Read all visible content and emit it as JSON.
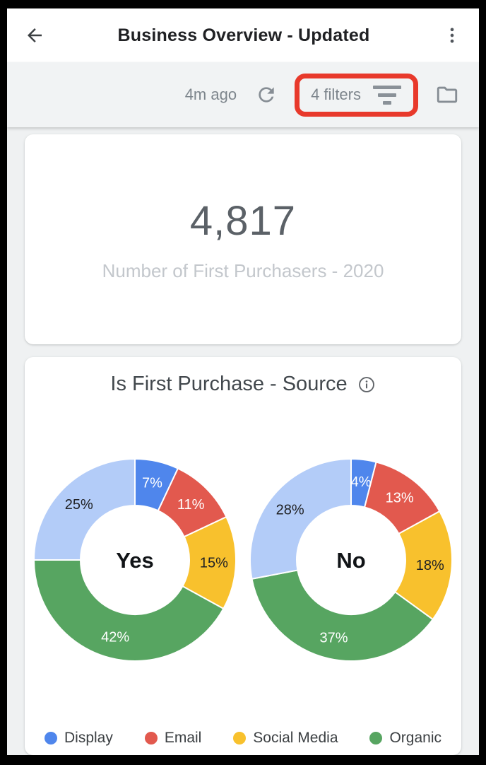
{
  "header": {
    "title": "Business Overview - Updated"
  },
  "toolbar": {
    "last_updated": "4m ago",
    "filters_label": "4 filters",
    "highlight_color": "#e8392b"
  },
  "scorecard": {
    "value": "4,817",
    "caption": "Number of First Purchasers - 2020"
  },
  "chart_data": {
    "type": "pie",
    "variant": "donut",
    "title": "Is First Purchase - Source",
    "legend_position": "bottom",
    "categories": [
      "Display",
      "Email",
      "Social Media",
      "Organic",
      ""
    ],
    "colors": [
      "#4f86ec",
      "#e2594e",
      "#f8c12d",
      "#57a561",
      "#b3ccf8"
    ],
    "donuts": [
      {
        "center_label": "Yes",
        "values_pct": [
          7,
          11,
          15,
          42,
          25
        ],
        "labels": [
          "7%",
          "11%",
          "15%",
          "42%",
          "25%"
        ]
      },
      {
        "center_label": "No",
        "values_pct": [
          4,
          13,
          18,
          37,
          28
        ],
        "labels": [
          "4%",
          "13%",
          "18%",
          "37%",
          "28%"
        ]
      }
    ],
    "legend": [
      {
        "label": "Display",
        "color": "#4f86ec"
      },
      {
        "label": "Email",
        "color": "#e2594e"
      },
      {
        "label": "Social Media",
        "color": "#f8c12d"
      },
      {
        "label": "Organic",
        "color": "#57a561"
      }
    ]
  }
}
